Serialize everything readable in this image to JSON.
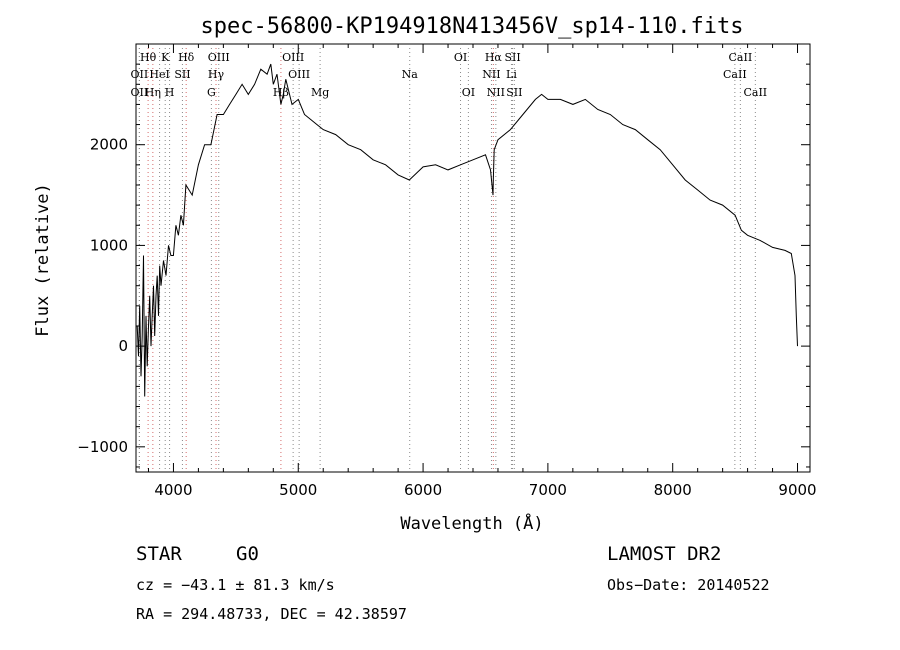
{
  "chart_data": {
    "type": "line",
    "title": "spec-56800-KP194918N413456V_sp14-110.fits",
    "xlabel": "Wavelength (Å)",
    "ylabel": "Flux (relative)",
    "xlim": [
      3700,
      9100
    ],
    "ylim": [
      -1250,
      3000
    ],
    "x_ticks": [
      4000,
      5000,
      6000,
      7000,
      8000,
      9000
    ],
    "y_ticks": [
      -1000,
      0,
      1000,
      2000
    ],
    "grid": false,
    "series": [
      {
        "x": [
          3710,
          3720,
          3730,
          3740,
          3750,
          3760,
          3770,
          3780,
          3790,
          3800,
          3810,
          3820,
          3830,
          3840,
          3850,
          3860,
          3870,
          3880,
          3890,
          3900,
          3920,
          3940,
          3960,
          3980,
          4000,
          4020,
          4040,
          4060,
          4080,
          4100,
          4150,
          4200,
          4250,
          4300,
          4350,
          4400,
          4450,
          4500,
          4550,
          4600,
          4650,
          4700,
          4750,
          4780,
          4800,
          4830,
          4861,
          4880,
          4900,
          4950,
          5000,
          5050,
          5100,
          5150,
          5200,
          5300,
          5400,
          5500,
          5600,
          5700,
          5800,
          5890,
          5950,
          6000,
          6100,
          6200,
          6300,
          6400,
          6500,
          6540,
          6560,
          6563,
          6570,
          6600,
          6700,
          6800,
          6900,
          6950,
          7000,
          7100,
          7200,
          7300,
          7400,
          7500,
          7600,
          7700,
          7800,
          7900,
          8000,
          8100,
          8200,
          8300,
          8400,
          8500,
          8550,
          8600,
          8700,
          8800,
          8900,
          8950,
          8980,
          8990,
          9000
        ],
        "y": [
          200,
          -100,
          400,
          -300,
          100,
          900,
          -500,
          300,
          -200,
          200,
          500,
          0,
          300,
          600,
          100,
          500,
          700,
          300,
          800,
          600,
          850,
          700,
          1000,
          900,
          900,
          1200,
          1100,
          1300,
          1200,
          1600,
          1500,
          1800,
          2000,
          2000,
          2300,
          2300,
          2400,
          2500,
          2600,
          2500,
          2600,
          2750,
          2700,
          2800,
          2600,
          2700,
          2400,
          2500,
          2650,
          2400,
          2450,
          2300,
          2250,
          2200,
          2150,
          2100,
          2000,
          1950,
          1850,
          1800,
          1700,
          1650,
          1720,
          1780,
          1800,
          1750,
          1800,
          1850,
          1900,
          1750,
          1500,
          1650,
          1950,
          2050,
          2150,
          2300,
          2450,
          2500,
          2450,
          2450,
          2400,
          2450,
          2350,
          2300,
          2200,
          2150,
          2050,
          1950,
          1800,
          1650,
          1550,
          1450,
          1400,
          1300,
          1150,
          1100,
          1050,
          980,
          950,
          920,
          700,
          300,
          0
        ],
        "color": "#000000"
      }
    ],
    "spectral_lines": [
      {
        "label": "Hθ",
        "x": 3797,
        "row": 0,
        "color": "#d46b6b"
      },
      {
        "label": "K",
        "x": 3934,
        "row": 0,
        "color": "#8a8a8a"
      },
      {
        "label": "Hδ",
        "x": 4102,
        "row": 0,
        "color": "#d46b6b"
      },
      {
        "label": "OIII",
        "x": 4363,
        "row": 0,
        "color": "#8a8a8a"
      },
      {
        "label": "OIII",
        "x": 4959,
        "row": 0,
        "color": "#8a8a8a"
      },
      {
        "label": "OI",
        "x": 6300,
        "row": 0,
        "color": "#8a8a8a"
      },
      {
        "label": "Hα",
        "x": 6563,
        "row": 0,
        "color": "#d46b6b"
      },
      {
        "label": "SII",
        "x": 6717,
        "row": 0,
        "color": "#8a8a8a"
      },
      {
        "label": "CaII",
        "x": 8542,
        "row": 0,
        "color": "#8a8a8a"
      },
      {
        "label": "OII",
        "x": 3727,
        "row": 1,
        "color": "#8a8a8a"
      },
      {
        "label": "HeI",
        "x": 3889,
        "row": 1,
        "color": "#8a8a8a"
      },
      {
        "label": "SII",
        "x": 4072,
        "row": 1,
        "color": "#8a8a8a"
      },
      {
        "label": "Hγ",
        "x": 4341,
        "row": 1,
        "color": "#d46b6b"
      },
      {
        "label": "OIII",
        "x": 5007,
        "row": 1,
        "color": "#8a8a8a"
      },
      {
        "label": "Na",
        "x": 5893,
        "row": 1,
        "color": "#8a8a8a"
      },
      {
        "label": "NII",
        "x": 6548,
        "row": 1,
        "color": "#8a8a8a"
      },
      {
        "label": "Li",
        "x": 6708,
        "row": 1,
        "color": "#8a8a8a"
      },
      {
        "label": "CaII",
        "x": 8498,
        "row": 1,
        "color": "#8a8a8a"
      },
      {
        "label": "OII",
        "x": 3727,
        "row": 2,
        "color": "#8a8a8a"
      },
      {
        "label": "Hη",
        "x": 3835,
        "row": 2,
        "color": "#d46b6b"
      },
      {
        "label": "H",
        "x": 3969,
        "row": 2,
        "color": "#8a8a8a"
      },
      {
        "label": "G",
        "x": 4304,
        "row": 2,
        "color": "#8a8a8a"
      },
      {
        "label": "Hβ",
        "x": 4861,
        "row": 2,
        "color": "#d46b6b"
      },
      {
        "label": "Mg",
        "x": 5175,
        "row": 2,
        "color": "#8a8a8a"
      },
      {
        "label": "OI",
        "x": 6363,
        "row": 2,
        "color": "#8a8a8a"
      },
      {
        "label": "NII",
        "x": 6583,
        "row": 2,
        "color": "#8a8a8a"
      },
      {
        "label": "SII",
        "x": 6731,
        "row": 2,
        "color": "#8a8a8a"
      },
      {
        "label": "CaII",
        "x": 8662,
        "row": 2,
        "color": "#8a8a8a"
      }
    ]
  },
  "info": {
    "object_class": "STAR",
    "subclass": "G0",
    "survey": "LAMOST DR2",
    "cz": "cz = −43.1 ± 81.3 km/s",
    "obs_date": "Obs−Date: 20140522",
    "coords": "RA = 294.48733, DEC =  42.38597"
  }
}
